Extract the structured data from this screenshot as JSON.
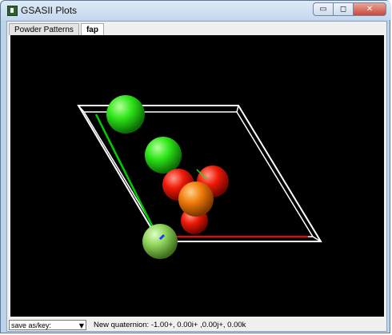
{
  "window": {
    "title": "GSASII Plots",
    "minimize_glyph": "▭",
    "maximize_glyph": "◻",
    "close_glyph": "✕"
  },
  "tabs": [
    {
      "label": "Powder Patterns",
      "active": false
    },
    {
      "label": "fap",
      "active": true
    }
  ],
  "plot": {
    "background": "#000000",
    "axis_colors": {
      "a": "#ff0000",
      "b": "#00cc00",
      "c": "#0000ff"
    },
    "atoms": [
      {
        "element": "green-atom",
        "color": "#22dd11"
      },
      {
        "element": "green-atom",
        "color": "#22dd11"
      },
      {
        "element": "red-atom",
        "color": "#ee1100"
      },
      {
        "element": "red-atom",
        "color": "#ee1100"
      },
      {
        "element": "red-atom",
        "color": "#ee1100"
      },
      {
        "element": "orange-atom",
        "color": "#ee7700"
      },
      {
        "element": "light-green-atom",
        "color": "#88cc55"
      }
    ]
  },
  "status": {
    "select_value": "save as/key:",
    "message": "New quaternion: -1.00+, 0.00i+ ,0.00j+, 0.00k"
  }
}
